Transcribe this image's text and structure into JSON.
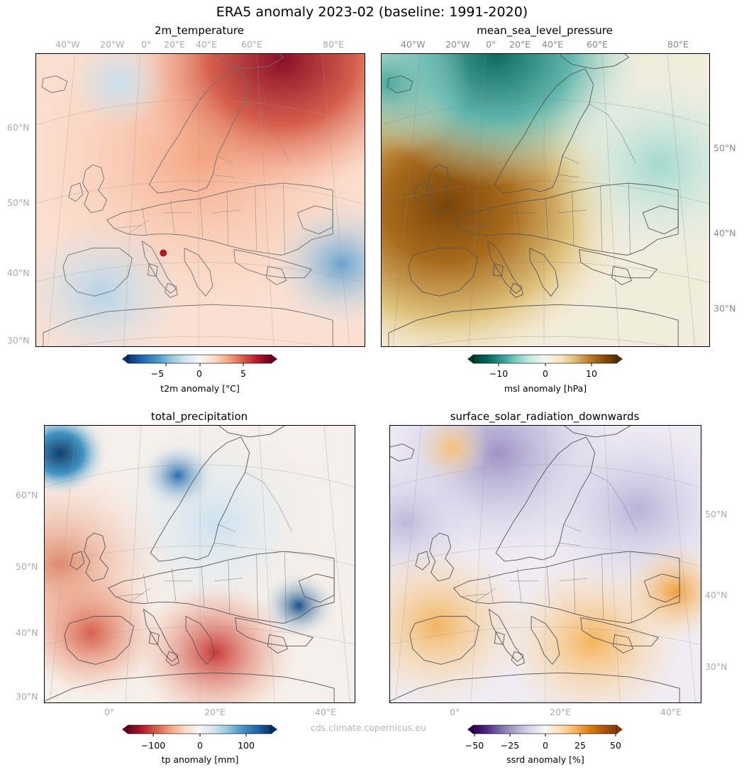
{
  "suptitle": "ERA5 anomaly 2023-02 (baseline: 1991-2020)",
  "credit": "cds.climate.copernicus.eu",
  "panels": {
    "t2m": {
      "title": "2m_temperature",
      "top_lon": [
        "40°W",
        "20°W",
        "0°",
        "20°E",
        "40°E",
        "60°E",
        "80°E"
      ],
      "lat": [
        "60°N",
        "50°N",
        "40°N",
        "30°N"
      ],
      "cbar": {
        "label": "t2m anomaly [°C]",
        "ticks": [
          "−5",
          "0",
          "5"
        ],
        "colors": [
          "#08306b",
          "#2166ac",
          "#4393c3",
          "#92c5de",
          "#d1e5f0",
          "#f7f7f7",
          "#fddbc7",
          "#f4a582",
          "#d6604d",
          "#b2182b",
          "#67001f"
        ]
      }
    },
    "msl": {
      "title": "mean_sea_level_pressure",
      "top_lon": [
        "40°W",
        "20°W",
        "0°",
        "20°E",
        "40°E",
        "60°E",
        "80°E"
      ],
      "lat": [
        "50°N",
        "40°N",
        "30°N"
      ],
      "cbar": {
        "label": "msl anomaly [hPa]",
        "ticks": [
          "−10",
          "0",
          "10"
        ],
        "colors": [
          "#003c30",
          "#01665e",
          "#35978f",
          "#80cdc1",
          "#c7eae5",
          "#f5f5f5",
          "#f6e8c3",
          "#dfc27d",
          "#bf812d",
          "#8c510a",
          "#543005"
        ]
      }
    },
    "tp": {
      "title": "total_precipitation",
      "bottom_lon": [
        "0°",
        "20°E",
        "40°E"
      ],
      "lat": [
        "60°N",
        "50°N",
        "40°N",
        "30°N"
      ],
      "cbar": {
        "label": "tp anomaly [mm]",
        "ticks": [
          "−100",
          "0",
          "100"
        ],
        "colors": [
          "#67001f",
          "#b2182b",
          "#d6604d",
          "#f4a582",
          "#fddbc7",
          "#f7f7f7",
          "#d1e5f0",
          "#92c5de",
          "#4393c3",
          "#2166ac",
          "#053061"
        ]
      }
    },
    "ssrd": {
      "title": "surface_solar_radiation_downwards",
      "bottom_lon": [
        "0°",
        "20°E",
        "40°E"
      ],
      "lat": [
        "50°N",
        "40°N",
        "30°N"
      ],
      "cbar": {
        "label": "ssrd anomaly [%]",
        "ticks": [
          "−50",
          "−25",
          "0",
          "25",
          "50"
        ],
        "colors": [
          "#2d004b",
          "#542788",
          "#8073ac",
          "#b2abd2",
          "#d8daeb",
          "#f7f7f7",
          "#fee0b6",
          "#fdb863",
          "#e08214",
          "#b35806",
          "#7f3b08"
        ]
      }
    }
  }
}
